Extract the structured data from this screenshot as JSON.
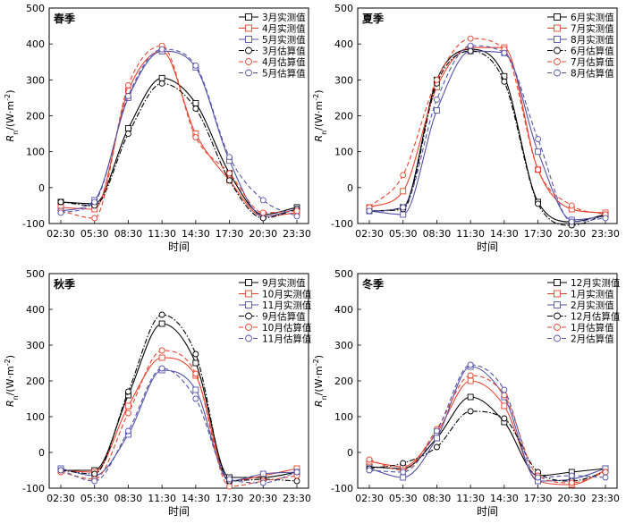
{
  "chart_data": [
    {
      "type": "line",
      "title": "春季",
      "xlabel": "时间",
      "ylabel_main": "R",
      "ylabel_sub": "n",
      "ylabel_unit": "/(W·m",
      "ylabel_sup": "-2",
      "ylabel_close": ")",
      "x": [
        "02:30",
        "05:30",
        "08:30",
        "11:30",
        "14:30",
        "17:30",
        "20:30",
        "23:30"
      ],
      "ylim": [
        -100,
        500
      ],
      "yticks": [
        -100,
        0,
        100,
        200,
        300,
        400,
        500
      ],
      "legend_position": "top-right",
      "series": [
        {
          "name": "3月实测值",
          "kind": "measured",
          "color": "#000000",
          "dash": "solid",
          "values": [
            -40,
            -45,
            165,
            305,
            235,
            40,
            -75,
            -55
          ]
        },
        {
          "name": "4月实测值",
          "kind": "measured",
          "color": "#e8412c",
          "dash": "solid",
          "values": [
            -55,
            -60,
            270,
            380,
            150,
            20,
            -80,
            -70
          ]
        },
        {
          "name": "5月实测值",
          "kind": "measured",
          "color": "#5353a8",
          "dash": "solid",
          "values": [
            -65,
            -35,
            250,
            380,
            335,
            75,
            -80,
            -60
          ]
        },
        {
          "name": "3月估算值",
          "kind": "estimated",
          "color": "#000000",
          "dash": "dashdot",
          "values": [
            -40,
            -50,
            150,
            290,
            220,
            20,
            -85,
            -60
          ]
        },
        {
          "name": "4月估算值",
          "kind": "estimated",
          "color": "#e8412c",
          "dash": "dash",
          "values": [
            -65,
            -85,
            285,
            395,
            140,
            40,
            -70,
            -65
          ]
        },
        {
          "name": "5月估算值",
          "kind": "estimated",
          "color": "#5353a8",
          "dash": "dash",
          "values": [
            -70,
            -40,
            255,
            385,
            340,
            85,
            -35,
            -80
          ]
        }
      ]
    },
    {
      "type": "line",
      "title": "夏季",
      "xlabel": "时间",
      "ylabel_main": "R",
      "ylabel_sub": "n",
      "ylabel_unit": "/(W·m",
      "ylabel_sup": "-2",
      "ylabel_close": ")",
      "x": [
        "02:30",
        "05:30",
        "08:30",
        "11:30",
        "14:30",
        "17:30",
        "20:30",
        "23:30"
      ],
      "ylim": [
        -100,
        500
      ],
      "yticks": [
        -100,
        0,
        100,
        200,
        300,
        400,
        500
      ],
      "legend_position": "top-right",
      "series": [
        {
          "name": "6月实测值",
          "kind": "measured",
          "color": "#000000",
          "dash": "solid",
          "values": [
            -65,
            -55,
            300,
            385,
            310,
            -40,
            -95,
            -75
          ]
        },
        {
          "name": "7月实测值",
          "kind": "measured",
          "color": "#e8412c",
          "dash": "solid",
          "values": [
            -55,
            -10,
            280,
            390,
            390,
            50,
            -60,
            -70
          ]
        },
        {
          "name": "8月实测值",
          "kind": "measured",
          "color": "#5353a8",
          "dash": "solid",
          "values": [
            -65,
            -75,
            215,
            380,
            375,
            100,
            -90,
            -80
          ]
        },
        {
          "name": "6月估算值",
          "kind": "estimated",
          "color": "#000000",
          "dash": "dashdot",
          "values": [
            -65,
            -60,
            290,
            380,
            295,
            -45,
            -105,
            -75
          ]
        },
        {
          "name": "7月估算值",
          "kind": "estimated",
          "color": "#e8412c",
          "dash": "dash",
          "values": [
            -55,
            35,
            300,
            415,
            385,
            50,
            -50,
            -75
          ]
        },
        {
          "name": "8月估算值",
          "kind": "estimated",
          "color": "#5353a8",
          "dash": "dash",
          "values": [
            -65,
            -55,
            245,
            395,
            375,
            135,
            -95,
            -85
          ]
        }
      ]
    },
    {
      "type": "line",
      "title": "秋季",
      "xlabel": "时间",
      "ylabel_main": "R",
      "ylabel_sub": "n",
      "ylabel_unit": "/(W·m",
      "ylabel_sup": "-2",
      "ylabel_close": ")",
      "x": [
        "02:30",
        "05:30",
        "08:30",
        "11:30",
        "14:30",
        "17:30",
        "20:30",
        "23:30"
      ],
      "ylim": [
        -100,
        500
      ],
      "yticks": [
        -100,
        0,
        100,
        200,
        300,
        400,
        500
      ],
      "legend_position": "top-right",
      "series": [
        {
          "name": "9月实测值",
          "kind": "measured",
          "color": "#000000",
          "dash": "solid",
          "values": [
            -50,
            -50,
            160,
            360,
            250,
            -70,
            -70,
            -55
          ]
        },
        {
          "name": "10月实测值",
          "kind": "measured",
          "color": "#e8412c",
          "dash": "solid",
          "values": [
            -50,
            -55,
            130,
            265,
            215,
            -80,
            -65,
            -45
          ]
        },
        {
          "name": "11月实测值",
          "kind": "measured",
          "color": "#5353a8",
          "dash": "solid",
          "values": [
            -45,
            -65,
            50,
            230,
            175,
            -80,
            -60,
            -55
          ]
        },
        {
          "name": "9月估算值",
          "kind": "estimated",
          "color": "#000000",
          "dash": "dashdot",
          "values": [
            -50,
            -60,
            170,
            385,
            275,
            -80,
            -75,
            -80
          ]
        },
        {
          "name": "10月估算值",
          "kind": "estimated",
          "color": "#e8412c",
          "dash": "dash",
          "values": [
            -55,
            -75,
            110,
            285,
            220,
            -95,
            -80,
            -65
          ]
        },
        {
          "name": "11月估算值",
          "kind": "estimated",
          "color": "#5353a8",
          "dash": "dash",
          "values": [
            -50,
            -80,
            60,
            235,
            150,
            -75,
            -85,
            -55
          ]
        }
      ]
    },
    {
      "type": "line",
      "title": "冬季",
      "xlabel": "时间",
      "ylabel_main": "R",
      "ylabel_sub": "n",
      "ylabel_unit": "/(W·m",
      "ylabel_sup": "-2",
      "ylabel_close": ")",
      "x": [
        "02:30",
        "05:30",
        "08:30",
        "11:30",
        "14:30",
        "17:30",
        "20:30",
        "23:30"
      ],
      "ylim": [
        -100,
        500
      ],
      "yticks": [
        -100,
        0,
        100,
        200,
        300,
        400,
        500
      ],
      "legend_position": "top-right",
      "series": [
        {
          "name": "12月实测值",
          "kind": "measured",
          "color": "#000000",
          "dash": "solid",
          "values": [
            -40,
            -45,
            40,
            155,
            85,
            -65,
            -55,
            -45
          ]
        },
        {
          "name": "1月实测值",
          "kind": "measured",
          "color": "#e8412c",
          "dash": "solid",
          "values": [
            -25,
            -40,
            55,
            200,
            130,
            -80,
            -90,
            -50
          ]
        },
        {
          "name": "2月实测值",
          "kind": "measured",
          "color": "#5353a8",
          "dash": "solid",
          "values": [
            -45,
            -70,
            40,
            240,
            155,
            -80,
            -75,
            -45
          ]
        },
        {
          "name": "12月估算值",
          "kind": "estimated",
          "color": "#000000",
          "dash": "dashdot",
          "values": [
            -45,
            -30,
            15,
            115,
            95,
            -55,
            -80,
            -55
          ]
        },
        {
          "name": "1月估算值",
          "kind": "estimated",
          "color": "#e8412c",
          "dash": "dash",
          "values": [
            -20,
            -50,
            65,
            215,
            160,
            -65,
            -85,
            -55
          ]
        },
        {
          "name": "2月估算值",
          "kind": "estimated",
          "color": "#5353a8",
          "dash": "dash",
          "values": [
            -50,
            -55,
            60,
            245,
            175,
            -70,
            -65,
            -70
          ]
        }
      ]
    }
  ]
}
